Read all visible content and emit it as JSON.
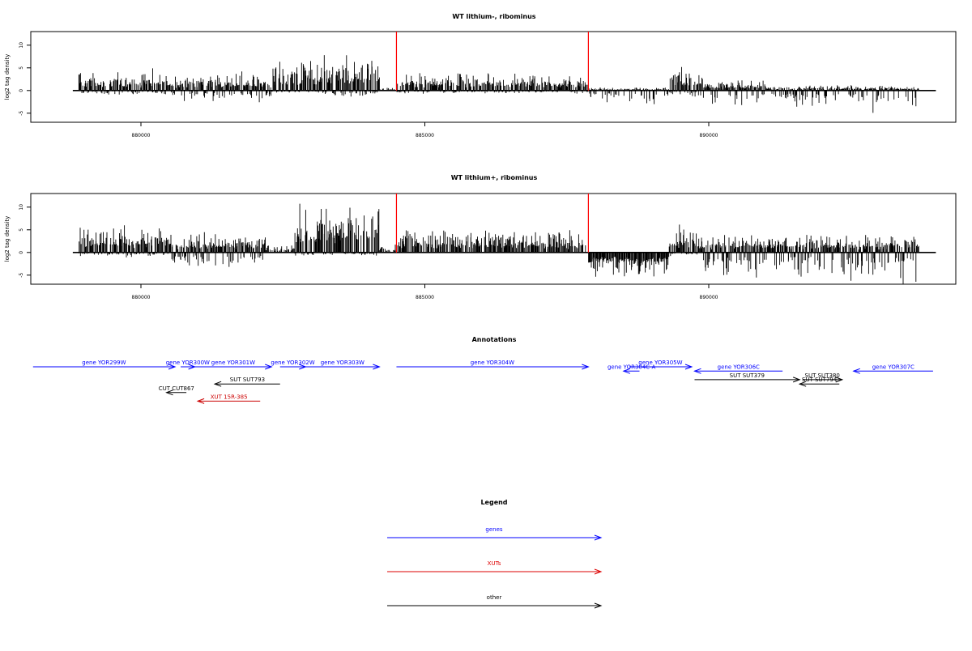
{
  "chart_data": [
    {
      "type": "bar",
      "title": "WT lithium-, ribominus",
      "ylabel": "log2 tag density",
      "xlim": [
        878800,
        894000
      ],
      "ylim": [
        -7,
        13
      ],
      "x_ticks": [
        "880000",
        "885000",
        "890000"
      ],
      "x_tick_values": [
        880000,
        885000,
        890000
      ],
      "y_ticks": [
        "-5",
        "0",
        "5",
        "10"
      ],
      "y_tick_values": [
        -5,
        0,
        5,
        10
      ],
      "markers": [
        884500,
        887880
      ],
      "marker_color": "#ff0000",
      "segments": [
        {
          "start": 878900,
          "end": 880500,
          "pos": 2.5,
          "neg": 0.6
        },
        {
          "start": 880500,
          "end": 882300,
          "pos": 2.2,
          "neg": 1.4
        },
        {
          "start": 882300,
          "end": 883100,
          "pos": 3.8,
          "neg": 0.4
        },
        {
          "start": 883100,
          "end": 884200,
          "pos": 4.8,
          "neg": 0.8
        },
        {
          "start": 884200,
          "end": 884500,
          "pos": 0.4,
          "neg": 0.2
        },
        {
          "start": 884500,
          "end": 887880,
          "pos": 2.2,
          "neg": 0.4
        },
        {
          "start": 887880,
          "end": 889300,
          "pos": 0.4,
          "neg": 1.8
        },
        {
          "start": 889300,
          "end": 889900,
          "pos": 2.8,
          "neg": 0.8
        },
        {
          "start": 889900,
          "end": 891000,
          "pos": 1.3,
          "neg": 2.2
        },
        {
          "start": 891000,
          "end": 892700,
          "pos": 0.7,
          "neg": 2.0
        },
        {
          "start": 892700,
          "end": 893700,
          "pos": 0.6,
          "neg": 3.2
        }
      ]
    },
    {
      "type": "bar",
      "title": "WT lithium+, ribominus",
      "ylabel": "log2 tag density",
      "xlim": [
        878800,
        894000
      ],
      "ylim": [
        -7,
        13
      ],
      "x_ticks": [
        "880000",
        "885000",
        "890000"
      ],
      "x_tick_values": [
        880000,
        885000,
        890000
      ],
      "y_ticks": [
        "-5",
        "0",
        "5",
        "10"
      ],
      "y_tick_values": [
        -5,
        0,
        5,
        10
      ],
      "markers": [
        884500,
        887880
      ],
      "marker_color": "#ff0000",
      "segments": [
        {
          "start": 878900,
          "end": 880500,
          "pos": 3.5,
          "neg": 0.6
        },
        {
          "start": 880500,
          "end": 882200,
          "pos": 2.6,
          "neg": 1.8
        },
        {
          "start": 882200,
          "end": 882700,
          "pos": 1.0,
          "neg": 0.3
        },
        {
          "start": 882700,
          "end": 884200,
          "pos": 6.5,
          "neg": 0.5
        },
        {
          "start": 884200,
          "end": 884500,
          "pos": 1.0,
          "neg": 0.3
        },
        {
          "start": 884500,
          "end": 887880,
          "pos": 3.0,
          "neg": 0.3
        },
        {
          "start": 887880,
          "end": 889300,
          "pos": 0.3,
          "neg": 3.0
        },
        {
          "start": 889300,
          "end": 889800,
          "pos": 3.8,
          "neg": 0.5
        },
        {
          "start": 889800,
          "end": 893700,
          "pos": 2.4,
          "neg": 3.6
        }
      ]
    }
  ],
  "annotations": {
    "title": "Annotations",
    "xlim": [
      878800,
      894000
    ],
    "features": [
      {
        "label": "gene YOR299W",
        "start": 878100,
        "end": 880600,
        "row": 0,
        "dir": "right",
        "color": "#0000ff"
      },
      {
        "label": "gene YOR300W",
        "start": 880700,
        "end": 880950,
        "row": 0,
        "dir": "right",
        "color": "#0000ff"
      },
      {
        "label": "gene YOR301W",
        "start": 880950,
        "end": 882300,
        "row": 0,
        "dir": "right",
        "color": "#0000ff"
      },
      {
        "label": "gene YOR302W",
        "start": 882450,
        "end": 882900,
        "row": 0,
        "dir": "right",
        "color": "#0000ff"
      },
      {
        "label": "gene YOR303W",
        "start": 882900,
        "end": 884200,
        "row": 0,
        "dir": "right",
        "color": "#0000ff"
      },
      {
        "label": "gene YOR304W",
        "start": 884500,
        "end": 887880,
        "row": 0,
        "dir": "right",
        "color": "#0000ff"
      },
      {
        "label": "gene YOR305W",
        "start": 888600,
        "end": 889700,
        "row": 0,
        "dir": "right",
        "color": "#0000ff"
      },
      {
        "label": "gene YOR304C-A",
        "start": 888500,
        "end": 888780,
        "row": 1,
        "dir": "left",
        "color": "#0000ff"
      },
      {
        "label": "gene YOR306C",
        "start": 889750,
        "end": 891300,
        "row": 1,
        "dir": "left",
        "color": "#0000ff"
      },
      {
        "label": "gene YOR307C",
        "start": 892550,
        "end": 893950,
        "row": 1,
        "dir": "left",
        "color": "#0000ff"
      },
      {
        "label": "SUT SUT379",
        "start": 889750,
        "end": 891600,
        "row": 3,
        "dir": "right",
        "color": "#000000"
      },
      {
        "label": "SUT SUT380",
        "start": 891650,
        "end": 892350,
        "row": 3,
        "dir": "right",
        "color": "#000000"
      },
      {
        "label": "SUT SUT794",
        "start": 891600,
        "end": 892300,
        "row": 4,
        "dir": "left",
        "color": "#000000"
      },
      {
        "label": "SUT SUT793",
        "start": 881300,
        "end": 882450,
        "row": 4,
        "dir": "left",
        "color": "#000000"
      },
      {
        "label": "CUT CUT867",
        "start": 880450,
        "end": 880800,
        "row": 6,
        "dir": "left",
        "color": "#000000"
      },
      {
        "label": "XUT 15R-385",
        "start": 881000,
        "end": 882100,
        "row": 8,
        "dir": "left",
        "color": "#cc0000"
      }
    ]
  },
  "legend": {
    "title": "Legend",
    "items": [
      {
        "label": "genes",
        "color": "#0000ff"
      },
      {
        "label": "XUTs",
        "color": "#dd0000"
      },
      {
        "label": "other",
        "color": "#000000"
      }
    ]
  }
}
